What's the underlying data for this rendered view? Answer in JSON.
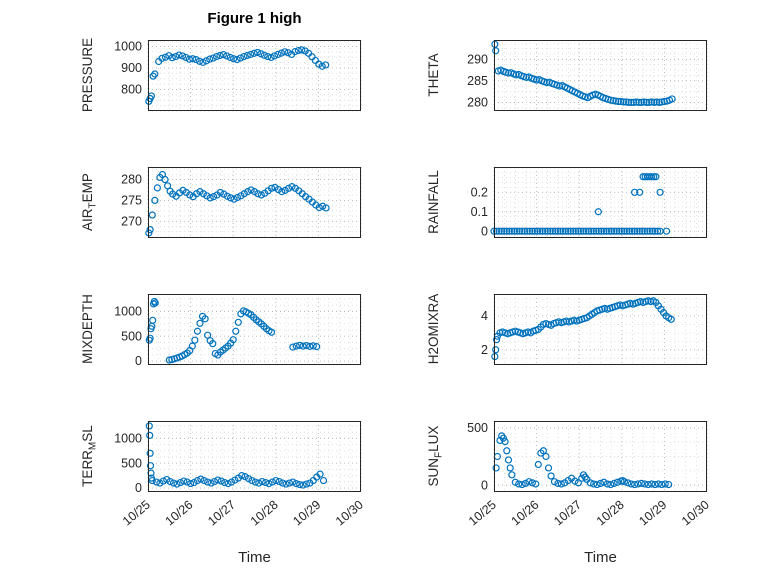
{
  "figure": {
    "title": "Figure 1 high",
    "xlabel": "Time",
    "xticklabels": [
      "10/25",
      "10/26",
      "10/27",
      "10/28",
      "10/29",
      "10/30"
    ],
    "colors": {
      "marker": "#0072BD",
      "axis": "#262626",
      "tick_label": "#262626",
      "grid_major": "#b3b3b3",
      "grid_minor": "#dcdcdc",
      "background": "#ffffff"
    }
  },
  "chart_data": [
    {
      "type": "scatter",
      "label": {
        "pre": "PRESSURE",
        "sub": "",
        "post": ""
      },
      "ylabel_plain": "PRESSURE",
      "yticks": [
        800,
        900,
        1000
      ],
      "ylim": [
        700,
        1030
      ],
      "xlim": [
        0,
        5
      ],
      "show_xticklabels": false,
      "x": [
        0.02,
        0.05,
        0.08,
        0.12,
        0.16,
        0.25,
        0.33,
        0.41,
        0.49,
        0.57,
        0.65,
        0.73,
        0.81,
        0.89,
        0.97,
        1.05,
        1.13,
        1.21,
        1.29,
        1.37,
        1.45,
        1.53,
        1.61,
        1.69,
        1.77,
        1.85,
        1.93,
        2.01,
        2.09,
        2.17,
        2.25,
        2.33,
        2.41,
        2.49,
        2.57,
        2.65,
        2.73,
        2.81,
        2.89,
        2.97,
        3.05,
        3.13,
        3.21,
        3.29,
        3.37,
        3.45,
        3.53,
        3.61,
        3.69,
        3.77,
        3.85,
        3.93,
        4.01,
        4.09,
        4.17
      ],
      "y": [
        745,
        758,
        770,
        862,
        872,
        930,
        945,
        950,
        957,
        948,
        953,
        960,
        956,
        949,
        941,
        943,
        939,
        931,
        926,
        933,
        941,
        946,
        953,
        958,
        962,
        956,
        949,
        943,
        939,
        946,
        953,
        958,
        963,
        968,
        972,
        966,
        959,
        953,
        949,
        956,
        963,
        969,
        975,
        971,
        963,
        976,
        981,
        984,
        979,
        968,
        952,
        935,
        918,
        908,
        914
      ]
    },
    {
      "type": "scatter",
      "label": {
        "pre": "AIR",
        "sub": "T",
        "post": "EMP"
      },
      "ylabel_plain": "AIR_TEMP",
      "yticks": [
        270,
        275,
        280
      ],
      "ylim": [
        266,
        283
      ],
      "xlim": [
        0,
        5
      ],
      "show_xticklabels": false,
      "x": [
        0.02,
        0.05,
        0.1,
        0.16,
        0.22,
        0.28,
        0.34,
        0.4,
        0.46,
        0.52,
        0.58,
        0.66,
        0.74,
        0.82,
        0.9,
        0.98,
        1.06,
        1.14,
        1.22,
        1.3,
        1.38,
        1.46,
        1.54,
        1.62,
        1.7,
        1.78,
        1.86,
        1.94,
        2.02,
        2.1,
        2.18,
        2.26,
        2.34,
        2.42,
        2.5,
        2.58,
        2.66,
        2.74,
        2.82,
        2.9,
        2.98,
        3.06,
        3.14,
        3.22,
        3.3,
        3.38,
        3.46,
        3.54,
        3.62,
        3.7,
        3.78,
        3.86,
        3.94,
        4.02,
        4.1,
        4.18
      ],
      "y": [
        267.2,
        268.0,
        271.5,
        275.0,
        278.0,
        280.5,
        281.2,
        280.0,
        278.5,
        277.2,
        276.5,
        276.0,
        276.8,
        277.4,
        276.9,
        276.3,
        275.9,
        276.6,
        277.1,
        276.6,
        276.1,
        275.6,
        275.9,
        276.3,
        276.9,
        276.5,
        276.0,
        275.6,
        275.3,
        275.7,
        276.1,
        276.6,
        277.1,
        277.5,
        277.1,
        276.6,
        276.3,
        276.7,
        277.3,
        277.9,
        278.1,
        277.6,
        277.1,
        277.4,
        277.9,
        278.3,
        277.9,
        277.3,
        276.6,
        275.9,
        275.3,
        274.6,
        273.9,
        273.3,
        273.6,
        273.2
      ]
    },
    {
      "type": "scatter",
      "label": {
        "pre": "MIXDEPTH",
        "sub": "",
        "post": ""
      },
      "ylabel_plain": "MIXDEPTH",
      "yticks": [
        0,
        500,
        1000
      ],
      "ylim": [
        -80,
        1350
      ],
      "xlim": [
        0,
        5
      ],
      "show_xticklabels": false,
      "x": [
        0.03,
        0.05,
        0.07,
        0.09,
        0.11,
        0.13,
        0.15,
        0.17,
        0.5,
        0.56,
        0.62,
        0.68,
        0.74,
        0.8,
        0.86,
        0.92,
        0.98,
        1.04,
        1.1,
        1.16,
        1.22,
        1.28,
        1.34,
        1.4,
        1.46,
        1.52,
        1.58,
        1.64,
        1.7,
        1.76,
        1.82,
        1.88,
        1.94,
        2.0,
        2.06,
        2.12,
        2.18,
        2.24,
        2.3,
        2.36,
        2.42,
        2.48,
        2.54,
        2.6,
        2.66,
        2.72,
        2.78,
        2.84,
        2.9,
        3.4,
        3.48,
        3.56,
        3.64,
        3.72,
        3.8,
        3.88,
        3.96
      ],
      "y": [
        420,
        460,
        650,
        700,
        820,
        1150,
        1200,
        1170,
        20,
        30,
        45,
        60,
        80,
        100,
        130,
        160,
        210,
        300,
        420,
        600,
        760,
        900,
        850,
        520,
        410,
        350,
        150,
        120,
        180,
        220,
        260,
        300,
        360,
        430,
        600,
        780,
        950,
        1010,
        990,
        960,
        930,
        880,
        830,
        790,
        750,
        700,
        650,
        610,
        580,
        280,
        300,
        315,
        300,
        310,
        295,
        305,
        290
      ]
    },
    {
      "type": "scatter",
      "label": {
        "pre": "TERR",
        "sub": "M",
        "post": "SL"
      },
      "ylabel_plain": "TERR_MSL",
      "yticks": [
        0,
        500,
        1000
      ],
      "ylim": [
        -80,
        1350
      ],
      "xlim": [
        0,
        5
      ],
      "show_xticklabels": true,
      "x": [
        0.03,
        0.04,
        0.05,
        0.06,
        0.07,
        0.08,
        0.1,
        0.2,
        0.28,
        0.36,
        0.44,
        0.52,
        0.6,
        0.68,
        0.76,
        0.84,
        0.92,
        1.0,
        1.08,
        1.16,
        1.24,
        1.32,
        1.4,
        1.48,
        1.56,
        1.64,
        1.72,
        1.8,
        1.88,
        1.96,
        2.04,
        2.12,
        2.2,
        2.28,
        2.36,
        2.44,
        2.52,
        2.6,
        2.68,
        2.76,
        2.84,
        2.92,
        3.0,
        3.08,
        3.16,
        3.24,
        3.32,
        3.4,
        3.48,
        3.56,
        3.64,
        3.72,
        3.8,
        3.88,
        3.96,
        4.04,
        4.12
      ],
      "y": [
        1250,
        1060,
        700,
        450,
        300,
        200,
        150,
        120,
        100,
        140,
        170,
        130,
        100,
        80,
        110,
        140,
        120,
        90,
        110,
        150,
        180,
        150,
        120,
        100,
        130,
        160,
        140,
        110,
        90,
        120,
        160,
        200,
        250,
        230,
        190,
        150,
        120,
        100,
        130,
        110,
        90,
        120,
        150,
        130,
        100,
        80,
        100,
        120,
        90,
        70,
        60,
        80,
        100,
        150,
        220,
        280,
        150
      ]
    },
    {
      "type": "scatter",
      "label": {
        "pre": "THETA",
        "sub": "",
        "post": ""
      },
      "ylabel_plain": "THETA",
      "yticks": [
        280,
        285,
        290
      ],
      "ylim": [
        278,
        294.5
      ],
      "xlim": [
        0,
        5
      ],
      "show_xticklabels": false,
      "x": [
        0.02,
        0.04,
        0.1,
        0.16,
        0.22,
        0.28,
        0.34,
        0.4,
        0.46,
        0.52,
        0.58,
        0.64,
        0.7,
        0.76,
        0.82,
        0.88,
        0.94,
        1.0,
        1.06,
        1.12,
        1.18,
        1.24,
        1.3,
        1.36,
        1.42,
        1.48,
        1.54,
        1.6,
        1.66,
        1.72,
        1.78,
        1.84,
        1.9,
        1.96,
        2.02,
        2.08,
        2.14,
        2.2,
        2.26,
        2.32,
        2.38,
        2.44,
        2.5,
        2.56,
        2.62,
        2.68,
        2.74,
        2.8,
        2.86,
        2.92,
        2.98,
        3.04,
        3.1,
        3.16,
        3.22,
        3.28,
        3.34,
        3.4,
        3.46,
        3.52,
        3.58,
        3.64,
        3.7,
        3.76,
        3.82,
        3.88,
        3.94,
        4.0,
        4.06,
        4.12,
        4.18
      ],
      "y": [
        293.5,
        292.0,
        287.3,
        287.5,
        287.2,
        287.0,
        286.8,
        286.9,
        286.6,
        286.4,
        286.5,
        286.2,
        286.0,
        285.8,
        285.9,
        285.6,
        285.4,
        285.2,
        285.3,
        285.0,
        284.8,
        284.6,
        284.7,
        284.4,
        284.2,
        284.0,
        283.8,
        283.9,
        283.6,
        283.3,
        283.0,
        282.7,
        282.4,
        282.1,
        281.8,
        281.5,
        281.3,
        281.1,
        281.4,
        281.7,
        281.9,
        281.7,
        281.4,
        281.1,
        280.9,
        280.7,
        280.5,
        280.4,
        280.3,
        280.2,
        280.2,
        280.1,
        280.1,
        280.0,
        280.0,
        280.0,
        280.1,
        280.0,
        280.0,
        280.1,
        280.0,
        280.0,
        280.1,
        280.0,
        280.1,
        280.0,
        280.1,
        280.2,
        280.3,
        280.5,
        280.8
      ]
    },
    {
      "type": "scatter",
      "label": {
        "pre": "RAINFALL",
        "sub": "",
        "post": ""
      },
      "ylabel_plain": "RAINFALL",
      "yticks": [
        0,
        0.1,
        0.2
      ],
      "ylim": [
        -0.035,
        0.33
      ],
      "xlim": [
        0,
        5
      ],
      "show_xticklabels": false,
      "x": [
        0,
        0.06,
        0.12,
        0.18,
        0.24,
        0.3,
        0.36,
        0.42,
        0.48,
        0.54,
        0.6,
        0.66,
        0.72,
        0.78,
        0.84,
        0.9,
        0.96,
        1.02,
        1.08,
        1.14,
        1.2,
        1.26,
        1.32,
        1.38,
        1.44,
        1.5,
        1.56,
        1.62,
        1.68,
        1.74,
        1.8,
        1.86,
        1.92,
        1.98,
        2.04,
        2.1,
        2.16,
        2.22,
        2.28,
        2.34,
        2.4,
        2.46,
        2.52,
        2.58,
        2.64,
        2.7,
        2.76,
        2.82,
        2.88,
        2.94,
        3.0,
        3.06,
        3.12,
        3.18,
        3.24,
        3.3,
        3.36,
        3.42,
        3.48,
        3.54,
        3.6,
        3.66,
        3.72,
        3.78,
        3.84,
        3.9,
        2.45,
        3.3,
        3.42,
        3.5,
        3.55,
        3.6,
        3.65,
        3.7,
        3.75,
        3.8,
        3.9,
        4.05
      ],
      "y": [
        0,
        0,
        0,
        0,
        0,
        0,
        0,
        0,
        0,
        0,
        0,
        0,
        0,
        0,
        0,
        0,
        0,
        0,
        0,
        0,
        0,
        0,
        0,
        0,
        0,
        0,
        0,
        0,
        0,
        0,
        0,
        0,
        0,
        0,
        0,
        0,
        0,
        0,
        0,
        0,
        0,
        0,
        0,
        0,
        0,
        0,
        0,
        0,
        0,
        0,
        0,
        0,
        0,
        0,
        0,
        0,
        0,
        0,
        0,
        0,
        0,
        0,
        0,
        0,
        0,
        0,
        0.1,
        0.2,
        0.2,
        0.28,
        0.28,
        0.28,
        0.28,
        0.28,
        0.28,
        0.28,
        0.2,
        0
      ]
    },
    {
      "type": "scatter",
      "label": {
        "pre": "H2OMIXRA",
        "sub": "",
        "post": ""
      },
      "ylabel_plain": "H2OMIXRA",
      "yticks": [
        2,
        4
      ],
      "ylim": [
        1.1,
        5.3
      ],
      "xlim": [
        0,
        5
      ],
      "show_xticklabels": false,
      "x": [
        0.02,
        0.04,
        0.06,
        0.08,
        0.14,
        0.2,
        0.26,
        0.32,
        0.38,
        0.44,
        0.5,
        0.56,
        0.62,
        0.68,
        0.74,
        0.8,
        0.86,
        0.92,
        0.98,
        1.04,
        1.1,
        1.16,
        1.22,
        1.28,
        1.34,
        1.4,
        1.46,
        1.52,
        1.58,
        1.64,
        1.7,
        1.76,
        1.82,
        1.88,
        1.94,
        2.0,
        2.06,
        2.12,
        2.18,
        2.24,
        2.3,
        2.36,
        2.42,
        2.48,
        2.54,
        2.6,
        2.66,
        2.72,
        2.78,
        2.84,
        2.9,
        2.96,
        3.02,
        3.08,
        3.14,
        3.2,
        3.26,
        3.32,
        3.38,
        3.44,
        3.5,
        3.56,
        3.62,
        3.68,
        3.74,
        3.8,
        3.86,
        3.92,
        3.98,
        4.04,
        4.1,
        4.16
      ],
      "y": [
        1.6,
        2.0,
        2.6,
        2.8,
        3.0,
        3.05,
        3.0,
        2.95,
        3.0,
        3.05,
        3.1,
        3.05,
        3.0,
        2.95,
        3.0,
        3.05,
        3.0,
        3.1,
        3.15,
        3.2,
        3.35,
        3.5,
        3.55,
        3.5,
        3.45,
        3.55,
        3.6,
        3.65,
        3.6,
        3.65,
        3.7,
        3.65,
        3.7,
        3.75,
        3.7,
        3.75,
        3.8,
        3.85,
        3.9,
        4.0,
        4.1,
        4.2,
        4.3,
        4.35,
        4.4,
        4.45,
        4.4,
        4.45,
        4.5,
        4.55,
        4.6,
        4.65,
        4.6,
        4.65,
        4.7,
        4.75,
        4.7,
        4.75,
        4.8,
        4.85,
        4.8,
        4.85,
        4.9,
        4.85,
        4.9,
        4.8,
        4.6,
        4.4,
        4.2,
        4.0,
        3.9,
        3.8
      ]
    },
    {
      "type": "scatter",
      "label": {
        "pre": "SUN",
        "sub": "F",
        "post": "LUX"
      },
      "ylabel_plain": "SUN_FLUX",
      "yticks": [
        0,
        500
      ],
      "ylim": [
        -60,
        560
      ],
      "xlim": [
        0,
        5
      ],
      "show_xticklabels": true,
      "x": [
        0.05,
        0.08,
        0.14,
        0.18,
        0.22,
        0.26,
        0.3,
        0.34,
        0.38,
        0.42,
        0.5,
        0.58,
        0.66,
        0.74,
        0.82,
        0.9,
        0.98,
        1.04,
        1.1,
        1.16,
        1.22,
        1.28,
        1.34,
        1.42,
        1.5,
        1.58,
        1.66,
        1.74,
        1.82,
        1.9,
        1.98,
        2.06,
        2.1,
        2.14,
        2.18,
        2.26,
        2.34,
        2.42,
        2.5,
        2.58,
        2.66,
        2.74,
        2.82,
        2.9,
        2.98,
        3.02,
        3.06,
        3.14,
        3.22,
        3.3,
        3.38,
        3.46,
        3.54,
        3.62,
        3.7,
        3.78,
        3.86,
        3.94,
        4.02,
        4.1
      ],
      "y": [
        150,
        250,
        390,
        430,
        410,
        380,
        300,
        220,
        150,
        90,
        25,
        10,
        5,
        15,
        30,
        20,
        10,
        180,
        280,
        300,
        250,
        150,
        80,
        30,
        15,
        10,
        20,
        40,
        60,
        35,
        20,
        60,
        90,
        70,
        50,
        20,
        10,
        5,
        15,
        25,
        10,
        5,
        15,
        25,
        35,
        40,
        30,
        20,
        10,
        5,
        10,
        15,
        10,
        5,
        10,
        5,
        10,
        5,
        10,
        5
      ]
    }
  ]
}
